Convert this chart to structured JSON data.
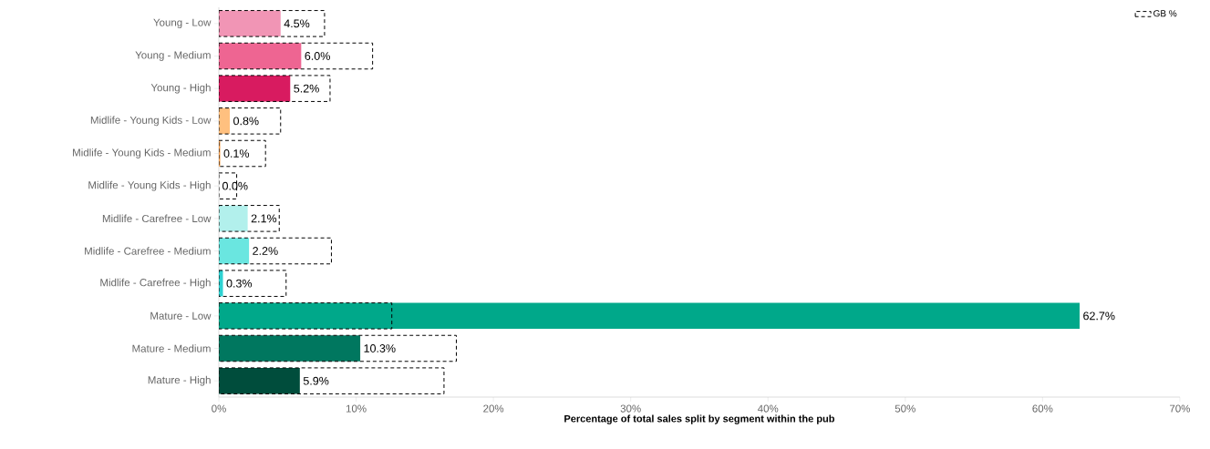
{
  "chart_data": {
    "type": "bar",
    "orientation": "horizontal",
    "xlabel": "Percentage of total sales split by segment within the pub",
    "categories": [
      "Young - Low",
      "Young - Medium",
      "Young - High",
      "Midlife - Young Kids - Low",
      "Midlife - Young Kids - Medium",
      "Midlife - Young Kids - High",
      "Midlife - Carefree - Low",
      "Midlife - Carefree - Medium",
      "Midlife - Carefree - High",
      "Mature - Low",
      "Mature - Medium",
      "Mature - High"
    ],
    "series": [
      {
        "colors": [
          "#f195b5",
          "#ee6592",
          "#d81b60",
          "#ffc07f",
          "#f5a050",
          "#ffd9b0",
          "#b2f0ec",
          "#6ae6e0",
          "#2ed2d2",
          "#00a88a",
          "#00775f",
          "#004d3c"
        ],
        "values": [
          4.5,
          6.0,
          5.2,
          0.8,
          0.1,
          0.0,
          2.1,
          2.2,
          0.3,
          62.7,
          10.3,
          5.9
        ],
        "value_labels": [
          "4.5%",
          "6.0%",
          "5.2%",
          "0.8%",
          "0.1%",
          "0.0%",
          "2.1%",
          "2.2%",
          "0.3%",
          "62.7%",
          "10.3%",
          "5.9%"
        ]
      },
      {
        "name": "GB %",
        "color": "#000000",
        "line_style": "dashed",
        "values": [
          7.7,
          11.2,
          8.1,
          4.5,
          3.4,
          1.3,
          4.4,
          8.2,
          4.9,
          12.6,
          17.3,
          16.4
        ]
      }
    ],
    "xlim": [
      0,
      70
    ],
    "xticks": [
      {
        "value": 0,
        "label": "0%"
      },
      {
        "value": 10,
        "label": "10%"
      },
      {
        "value": 20,
        "label": "20%"
      },
      {
        "value": 30,
        "label": "30%"
      },
      {
        "value": 40,
        "label": "40%"
      },
      {
        "value": 50,
        "label": "50%"
      },
      {
        "value": 60,
        "label": "60%"
      },
      {
        "value": 70,
        "label": "70%"
      }
    ],
    "legend": "top right"
  }
}
